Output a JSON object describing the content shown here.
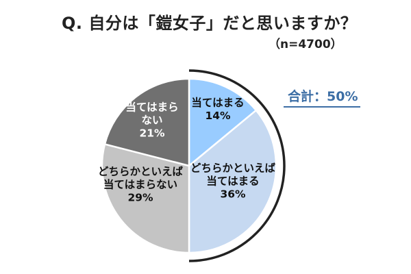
{
  "title": "Q. 自分は「鎧女子」だと思いますか？",
  "subtitle": "（n=4700）",
  "chart_data": {
    "type": "pie",
    "categories": [
      "当てはまる",
      "どちらかといえば当てはまる",
      "どちらかといえば当てはまらない",
      "当てはまらない"
    ],
    "values": [
      14,
      36,
      29,
      21
    ],
    "unit": "%",
    "slices": [
      {
        "label_lines": [
          "当てはまる"
        ],
        "value_text": "14%",
        "value": 14,
        "color": "#99ccff",
        "text_color": "#111111"
      },
      {
        "label_lines": [
          "どちらかといえば",
          "当てはまる"
        ],
        "value_text": "36%",
        "value": 36,
        "color": "#c6d9f1",
        "text_color": "#111111"
      },
      {
        "label_lines": [
          "どちらかといえば",
          "当てはまらない"
        ],
        "value_text": "29%",
        "value": 29,
        "color": "#c4c4c4",
        "text_color": "#111111"
      },
      {
        "label_lines": [
          "当てはまら",
          "ない"
        ],
        "value_text": "21%",
        "value": 21,
        "color": "#707070",
        "text_color": "#ffffff"
      }
    ],
    "total_annotation": "合計：50%",
    "annotation_color": "#3c6ea5",
    "title": "Q. 自分は「鎧女子」だと思いますか？"
  }
}
